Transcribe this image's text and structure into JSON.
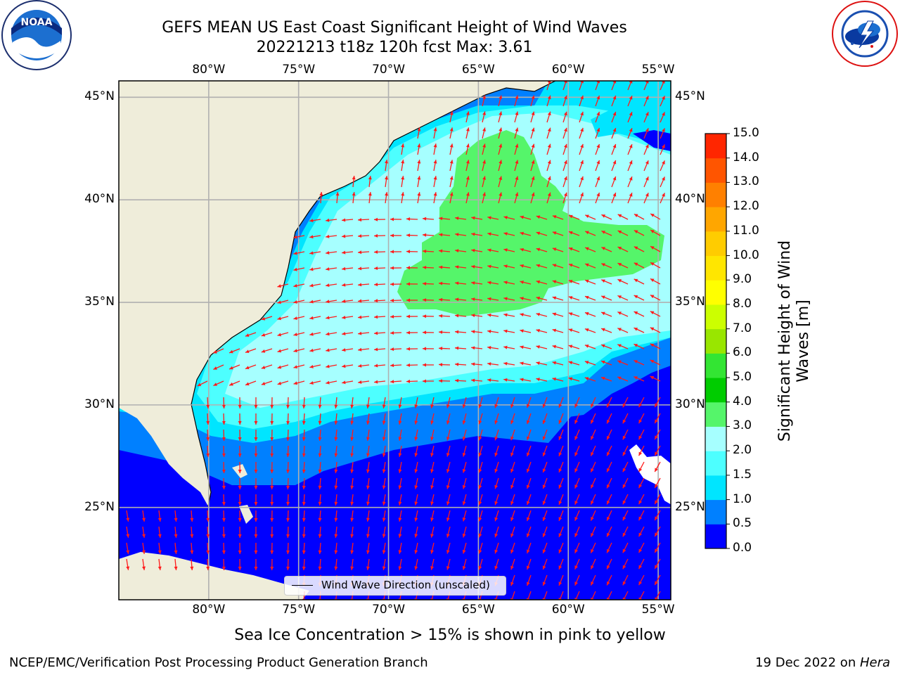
{
  "title": {
    "line1": "GEFS MEAN US East Coast Significant Height of Wind Waves",
    "line2": "20221213 t18z 120h fcst   Max: 3.61"
  },
  "logos": {
    "left": "NOAA",
    "left_ring_text": "NATIONAL OCEANIC AND ATMOSPHERIC ADMINISTRATION · U.S. DEPARTMENT OF COMMERCE",
    "right_ring_text": "NATIONAL WEATHER SERVICE"
  },
  "map": {
    "lon_labels": [
      "80°W",
      "75°W",
      "70°W",
      "65°W",
      "60°W",
      "55°W"
    ],
    "lat_labels": [
      "45°N",
      "40°N",
      "35°N",
      "30°N",
      "25°N"
    ],
    "lon_range": [
      -85,
      -54.3
    ],
    "lat_range": [
      20.5,
      45.8
    ],
    "gridlines": true,
    "legend_text": "Wind Wave Direction (unscaled)",
    "land_color": "#efedda",
    "arrow_color": "#ff1a1a"
  },
  "colorbar": {
    "label": "Significant Height of Wind Waves [m]",
    "ticks": [
      "0.0",
      "0.5",
      "1.0",
      "1.5",
      "2.0",
      "3.0",
      "4.0",
      "5.0",
      "6.0",
      "7.0",
      "8.0",
      "9.0",
      "10.0",
      "11.0",
      "12.0",
      "13.0",
      "14.0",
      "15.0"
    ],
    "colors": [
      "#0000ff",
      "#0080ff",
      "#00e5ff",
      "#4dffff",
      "#a6ffff",
      "#55f56a",
      "#00cc00",
      "#33e533",
      "#99e600",
      "#ccff00",
      "#ffff00",
      "#ffe600",
      "#ffcc00",
      "#ffa600",
      "#ff8000",
      "#ff5500",
      "#ff2600"
    ]
  },
  "footer": {
    "note": "Sea Ice Concentration > 15% is shown in pink to yellow",
    "left": "NCEP/EMC/Verification Post Processing Product Generation Branch",
    "right_date": "19 Dec 2022 on ",
    "right_host": "Hera"
  }
}
